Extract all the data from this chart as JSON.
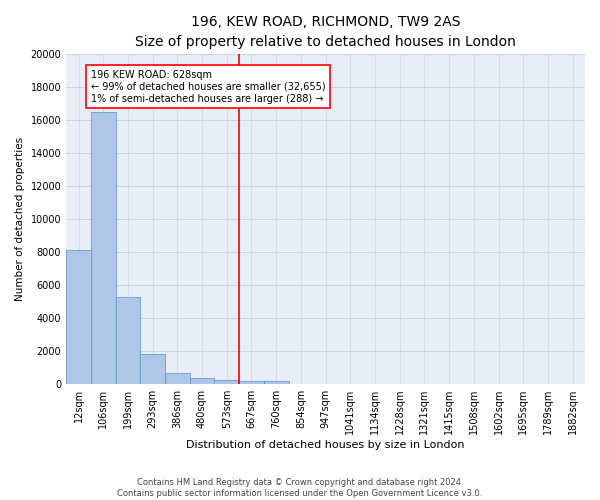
{
  "title": "196, KEW ROAD, RICHMOND, TW9 2AS",
  "subtitle": "Size of property relative to detached houses in London",
  "xlabel": "Distribution of detached houses by size in London",
  "ylabel": "Number of detached properties",
  "categories": [
    "12sqm",
    "106sqm",
    "199sqm",
    "293sqm",
    "386sqm",
    "480sqm",
    "573sqm",
    "667sqm",
    "760sqm",
    "854sqm",
    "947sqm",
    "1041sqm",
    "1134sqm",
    "1228sqm",
    "1321sqm",
    "1415sqm",
    "1508sqm",
    "1602sqm",
    "1695sqm",
    "1789sqm",
    "1882sqm"
  ],
  "bar_values": [
    8100,
    16500,
    5300,
    1850,
    700,
    350,
    250,
    175,
    175,
    0,
    0,
    0,
    0,
    0,
    0,
    0,
    0,
    0,
    0,
    0,
    0
  ],
  "bar_color": "#aec6e8",
  "bar_edge_color": "#5a8fc2",
  "vline_x": 6.5,
  "vline_color": "red",
  "annotation_text": "196 KEW ROAD: 628sqm\n← 99% of detached houses are smaller (32,655)\n1% of semi-detached houses are larger (288) →",
  "annotation_box_color": "white",
  "annotation_box_edge_color": "red",
  "ylim": [
    0,
    20000
  ],
  "yticks": [
    0,
    2000,
    4000,
    6000,
    8000,
    10000,
    12000,
    14000,
    16000,
    18000,
    20000
  ],
  "grid_color": "#c8d4e8",
  "bg_color": "#e8eef8",
  "footnote": "Contains HM Land Registry data © Crown copyright and database right 2024.\nContains public sector information licensed under the Open Government Licence v3.0.",
  "title_fontsize": 10,
  "subtitle_fontsize": 8.5,
  "ylabel_fontsize": 7.5,
  "xlabel_fontsize": 8,
  "tick_fontsize": 7,
  "annot_fontsize": 7,
  "footnote_fontsize": 6
}
